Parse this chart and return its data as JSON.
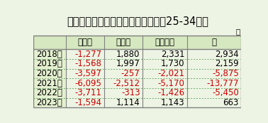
{
  "title": "東京都の埼玉県等との純移動人口（25-34歳）",
  "unit_label": "人",
  "col_headers": [
    "埼玉県",
    "千葉県",
    "神奈川県",
    "計"
  ],
  "row_headers": [
    "2018年",
    "2019年",
    "2020年",
    "2021年",
    "2022年",
    "2023年"
  ],
  "values": [
    [
      -1277,
      1880,
      2331,
      2934
    ],
    [
      -1568,
      1997,
      1730,
      2159
    ],
    [
      -3597,
      -257,
      -2021,
      -5875
    ],
    [
      -6095,
      -2512,
      -5170,
      -13777
    ],
    [
      -3711,
      -313,
      -1426,
      -5450
    ],
    [
      -1594,
      1114,
      1143,
      663
    ]
  ],
  "bg_color": "#eef4e4",
  "header_bg": "#d6e8c0",
  "row_header_bg": "#e4f0d0",
  "data_bg": "#eef4e4",
  "border_color": "#808080",
  "dotted_color": "#6aaa6a",
  "negative_color": "#cc0000",
  "positive_color": "#000000",
  "title_color": "#000000",
  "title_fontsize": 10.5,
  "cell_fontsize": 8.5,
  "unit_fontsize": 7.5
}
